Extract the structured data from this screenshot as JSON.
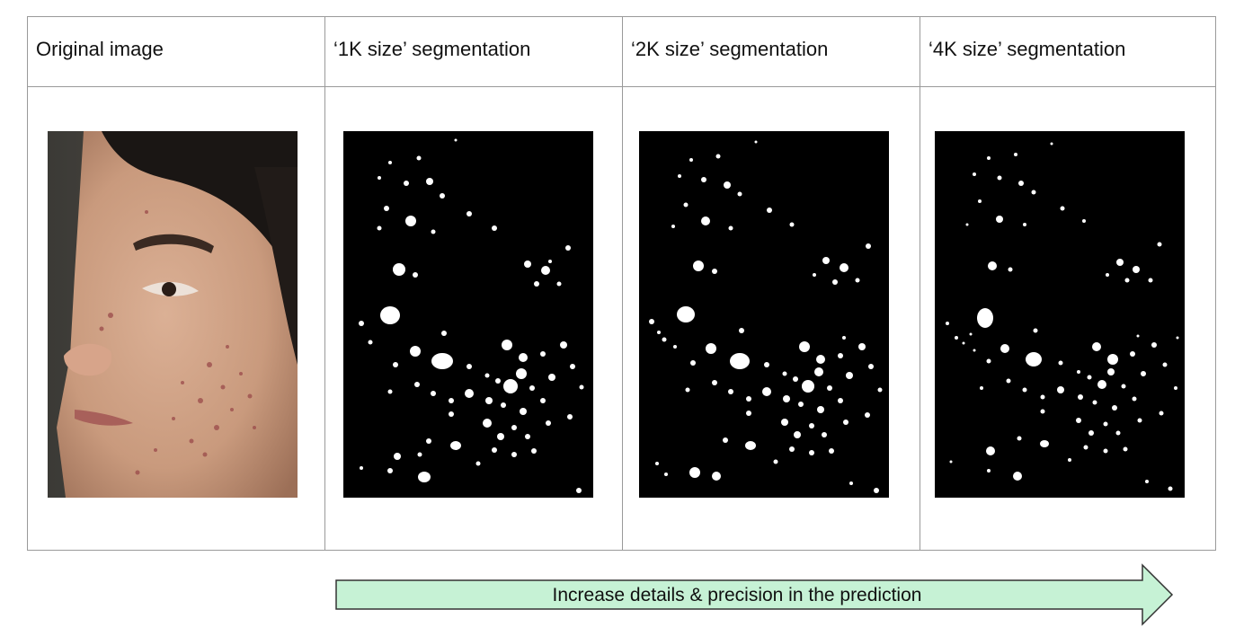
{
  "table": {
    "headers": [
      "Original image",
      "‘1K size’ segmentation",
      "‘2K size’ segmentation",
      "‘4K size’ segmentation"
    ]
  },
  "arrow": {
    "label": "Increase details & precision in the prediction",
    "fill": "#c6f2d5",
    "stroke": "#333333"
  },
  "colors": {
    "border": "#9a9a9a",
    "mask_background": "#000000",
    "mask_spots": "#ffffff",
    "skin": "#c99a7d",
    "hair": "#1a1614"
  }
}
